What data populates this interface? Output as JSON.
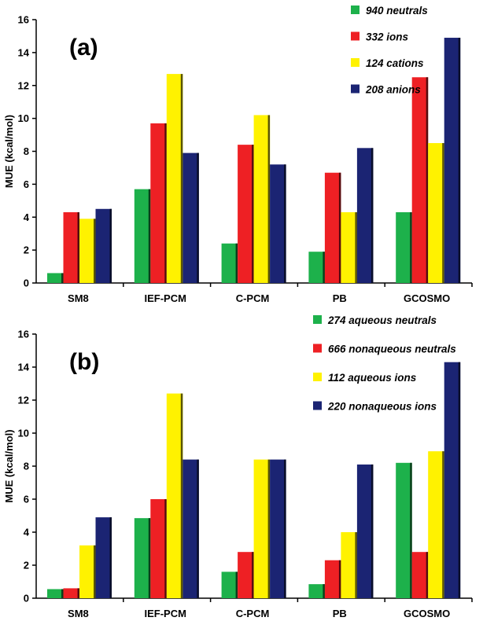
{
  "chart_data": [
    {
      "type": "bar",
      "panel_label": "(a)",
      "ylabel": "MUE (kcal/mol)",
      "ylim": [
        0,
        16
      ],
      "yticks": [
        "0",
        "2",
        "4",
        "6",
        "8",
        "10",
        "12",
        "14",
        "16"
      ],
      "categories": [
        "SM8",
        "IEF-PCM",
        "C-PCM",
        "PB",
        "GCOSMO"
      ],
      "legend_position": "top-right",
      "series": [
        {
          "name": "940 neutrals",
          "color": "#1db14b",
          "values": [
            0.6,
            5.7,
            2.4,
            1.9,
            4.3
          ]
        },
        {
          "name": "332 ions",
          "color": "#ee2024",
          "values": [
            4.3,
            9.7,
            8.4,
            6.7,
            12.5
          ]
        },
        {
          "name": "124 cations",
          "color": "#fff200",
          "values": [
            3.9,
            12.7,
            10.2,
            4.3,
            8.5
          ]
        },
        {
          "name": "208 anions",
          "color": "#1b2473",
          "values": [
            4.5,
            7.9,
            7.2,
            8.2,
            14.9
          ]
        }
      ]
    },
    {
      "type": "bar",
      "panel_label": "(b)",
      "ylabel": "MUE (kcal/mol)",
      "ylim": [
        0,
        16
      ],
      "yticks": [
        "0",
        "2",
        "4",
        "6",
        "8",
        "10",
        "12",
        "14",
        "16"
      ],
      "categories": [
        "SM8",
        "IEF-PCM",
        "C-PCM",
        "PB",
        "GCOSMO"
      ],
      "legend_position": "top-right",
      "series": [
        {
          "name": "274 aqueous neutrals",
          "color": "#1db14b",
          "values": [
            0.55,
            4.85,
            1.6,
            0.85,
            8.2
          ]
        },
        {
          "name": "666 nonaqueous neutrals",
          "color": "#ee2024",
          "values": [
            0.6,
            6.0,
            2.8,
            2.3,
            2.8
          ]
        },
        {
          "name": "112 aqueous ions",
          "color": "#fff200",
          "values": [
            3.2,
            12.4,
            8.4,
            4.0,
            8.9
          ]
        },
        {
          "name": "220 nonaqueous ions",
          "color": "#1b2473",
          "values": [
            4.9,
            8.4,
            8.4,
            8.1,
            14.3
          ]
        }
      ]
    }
  ]
}
